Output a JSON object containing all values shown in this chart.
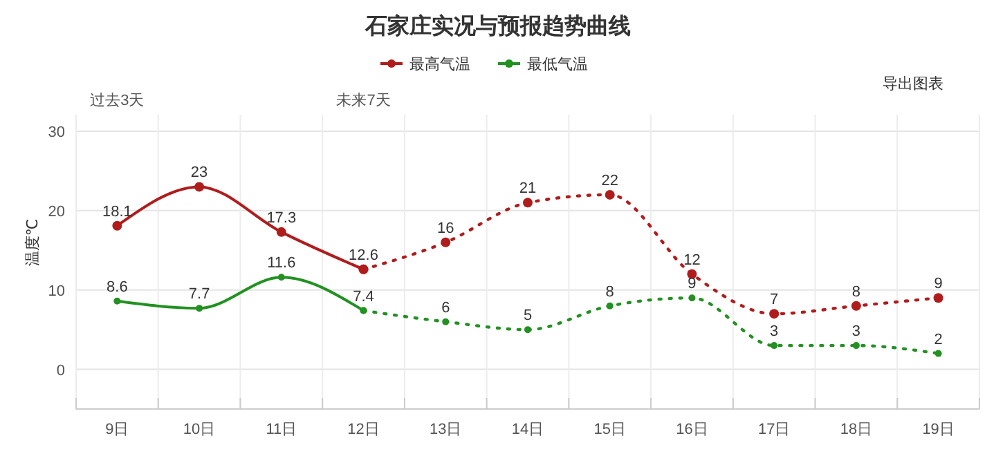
{
  "chart_data": {
    "type": "line",
    "title": "石家庄实况与预报趋势曲线",
    "ylabel": "温度℃",
    "categories": [
      "9日",
      "10日",
      "11日",
      "12日",
      "13日",
      "14日",
      "15日",
      "16日",
      "17日",
      "18日",
      "19日"
    ],
    "series": [
      {
        "name": "最高气温",
        "color": "#b01c1c",
        "line_style": "solid",
        "values": [
          18.1,
          23,
          17.3,
          12.6,
          null,
          null,
          null,
          null,
          null,
          null,
          null
        ],
        "value_labels": [
          "18.1",
          "23",
          "17.3",
          "12.6",
          null,
          null,
          null,
          null,
          null,
          null,
          null
        ]
      },
      {
        "name": "最低气温",
        "color": "#229122",
        "line_style": "solid",
        "values": [
          8.6,
          7.7,
          11.6,
          7.4,
          null,
          null,
          null,
          null,
          null,
          null,
          null
        ],
        "value_labels": [
          "8.6",
          "7.7",
          "11.6",
          "7.4",
          null,
          null,
          null,
          null,
          null,
          null,
          null
        ]
      },
      {
        "color": "#b01c1c",
        "line_style": "dotted",
        "values": [
          null,
          null,
          null,
          12.6,
          16,
          21,
          22,
          12,
          7,
          8,
          9
        ],
        "value_labels": [
          null,
          null,
          null,
          null,
          "16",
          "21",
          "22",
          "12",
          "7",
          "8",
          "9"
        ]
      },
      {
        "color": "#229122",
        "line_style": "dotted",
        "values": [
          null,
          null,
          null,
          7.4,
          6,
          5,
          8,
          9,
          3,
          3,
          2
        ],
        "value_labels": [
          null,
          null,
          null,
          null,
          "6",
          "5",
          "8",
          "9",
          "3",
          "3",
          "2"
        ]
      }
    ],
    "ylim": [
      -5,
      30
    ],
    "yticks": [
      0,
      10,
      20,
      30
    ],
    "grid": true,
    "legend": "top",
    "marker": "circle",
    "annotations": [
      "过去3天",
      "未来7天",
      "导出图表"
    ]
  }
}
